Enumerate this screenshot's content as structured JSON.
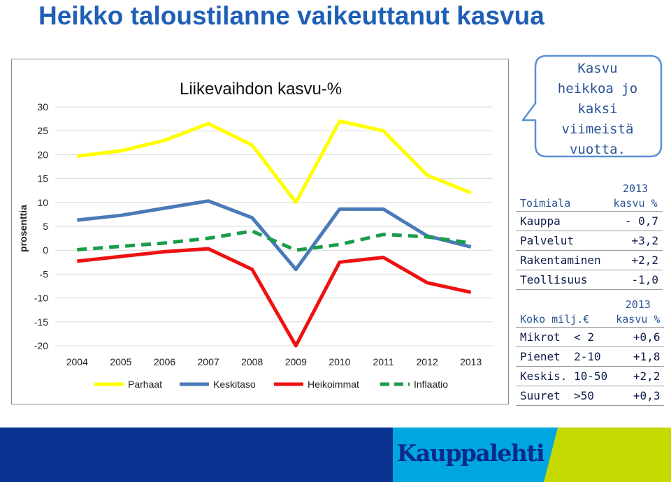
{
  "page": {
    "title": "Heikko taloustilanne vaikeuttanut kasvua"
  },
  "callout": {
    "lines": [
      "Kasvu",
      "heikkoa jo",
      "kaksi",
      "viimeistä",
      "vuotta."
    ]
  },
  "chart_data": {
    "type": "line",
    "title": "Liikevaihdon kasvu-%",
    "xlabel": "",
    "ylabel": "prosenttia",
    "x": [
      "2004",
      "2005",
      "2006",
      "2007",
      "2008",
      "2009",
      "2010",
      "2011",
      "2012",
      "2013"
    ],
    "ylim": [
      -20,
      30
    ],
    "yticks": [
      "30",
      "25",
      "20",
      "15",
      "10",
      "5",
      "0",
      "-5",
      "-10",
      "-15",
      "-20"
    ],
    "grid": true,
    "legend_position": "bottom",
    "series": [
      {
        "name": "Parhaat",
        "color": "#ffff00",
        "dash": "solid",
        "values": [
          19.7,
          20.8,
          23.0,
          26.5,
          22.0,
          10.0,
          27.0,
          25.0,
          15.7,
          12.0
        ]
      },
      {
        "name": "Keskitaso",
        "color": "#4a7ab8",
        "dash": "solid",
        "values": [
          6.3,
          7.3,
          8.8,
          10.3,
          6.8,
          -4.0,
          8.6,
          8.6,
          3.0,
          0.7
        ]
      },
      {
        "name": "Heikoimmat",
        "color": "#ee1111",
        "dash": "solid",
        "values": [
          -2.3,
          -1.3,
          -0.3,
          0.3,
          -4.0,
          -20.0,
          -2.5,
          -1.5,
          -6.8,
          -8.8
        ]
      },
      {
        "name": "Inflaatio",
        "color": "#1a9d4a",
        "dash": "dashed",
        "values": [
          0.1,
          0.8,
          1.5,
          2.5,
          4.0,
          0.0,
          1.2,
          3.3,
          2.8,
          1.5
        ]
      }
    ]
  },
  "table_toimiala": {
    "header_left": "Toimiala",
    "header_right_line1": "2013",
    "header_right_line2": "kasvu %",
    "rows": [
      {
        "label": "Kauppa",
        "value": "- 0,7"
      },
      {
        "label": "Palvelut",
        "value": "+3,2"
      },
      {
        "label": "Rakentaminen",
        "value": "+2,2"
      },
      {
        "label": "Teollisuus",
        "value": "-1,0"
      }
    ]
  },
  "table_koko": {
    "header_left": "Koko milj.€",
    "header_right_line1": "2013",
    "header_right_line2": "kasvu %",
    "rows": [
      {
        "label": "Mikrot  < 2",
        "value": "+0,6"
      },
      {
        "label": "Pienet  2-10",
        "value": "+1,8"
      },
      {
        "label": "Keskis. 10-50",
        "value": "+2,2"
      },
      {
        "label": "Suuret  >50",
        "value": "+0,3"
      }
    ]
  },
  "footer": {
    "brand": "Kauppalehti",
    "colors": {
      "blue": "#0a3290",
      "cyan": "#00a6e0",
      "green": "#c5d800"
    }
  }
}
